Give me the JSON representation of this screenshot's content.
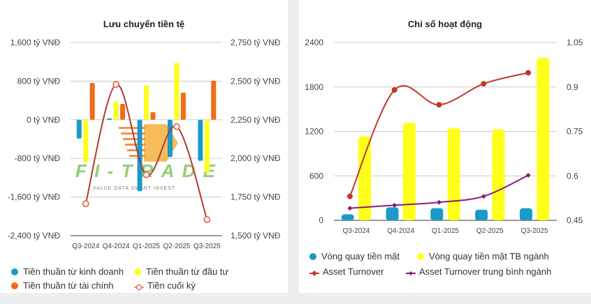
{
  "chart_data": [
    {
      "type": "bar",
      "title": "Lưu chuyển tiền tệ",
      "categories": [
        "Q3-2024",
        "Q4-2024",
        "Q1-2025",
        "Q2-2025",
        "Q3-2025"
      ],
      "y_left": {
        "ticks": [
          "1,600 tỷ VNĐ",
          "800 tỷ VNĐ",
          "0 tỷ VNĐ",
          "-800 tỷ VNĐ",
          "-1,600 tỷ VNĐ",
          "-2,400 tỷ VNĐ"
        ],
        "range": [
          -2400,
          1600
        ]
      },
      "y_right": {
        "ticks": [
          "2,750 tỷ VNĐ",
          "2,500 tỷ VNĐ",
          "2,250 tỷ VNĐ",
          "2,000 tỷ VNĐ",
          "1,750 tỷ VNĐ",
          "1,500 tỷ VNĐ"
        ],
        "range": [
          1500,
          2750
        ]
      },
      "series": [
        {
          "name": "Tiền thuần từ kinh doanh",
          "type": "bar",
          "axis": "left",
          "color": "#1a9ac9",
          "values": [
            -390,
            30,
            -1480,
            -770,
            -850
          ]
        },
        {
          "name": "Tiền thuần từ đầu tư",
          "type": "bar",
          "axis": "left",
          "color": "#ffff1a",
          "values": [
            -880,
            380,
            710,
            1180,
            -1090
          ]
        },
        {
          "name": "Tiền thuần từ tài chính",
          "type": "bar",
          "axis": "left",
          "color": "#f26b16",
          "values": [
            765,
            330,
            160,
            560,
            810
          ]
        },
        {
          "name": "Tiền cuối kỳ",
          "type": "line",
          "axis": "right",
          "color": "#b03a2e",
          "values": [
            1707,
            2479,
            1894,
            2206,
            1604
          ]
        }
      ],
      "legend": "bottom",
      "grid": true
    },
    {
      "type": "bar",
      "title": "Chỉ số hoạt động",
      "categories": [
        "Q3-2024",
        "Q4-2024",
        "Q1-2025",
        "Q2-2025",
        "Q3-2025"
      ],
      "y_left": {
        "ticks": [
          "2400",
          "1800",
          "1200",
          "600",
          "0"
        ],
        "range": [
          0,
          2400
        ]
      },
      "y_right": {
        "ticks": [
          "1.05",
          "0.9",
          "0.75",
          "0.6",
          "0.45"
        ],
        "range": [
          0.45,
          1.05
        ]
      },
      "series": [
        {
          "name": "Vòng quay tiền mặt",
          "type": "bar",
          "axis": "left",
          "color": "#1a9ac9",
          "values": [
            81,
            175,
            163,
            144,
            163
          ]
        },
        {
          "name": "Vòng quay tiền mặt TB ngành",
          "type": "bar",
          "axis": "left",
          "color": "#ffff1a",
          "values": [
            1133,
            1317,
            1242,
            1227,
            2193
          ]
        },
        {
          "name": "Asset Turnover",
          "type": "line",
          "axis": "right",
          "color": "#c0392b",
          "values": [
            0.531,
            0.89,
            0.84,
            0.911,
            0.948
          ]
        },
        {
          "name": "Asset Turnover trung bình ngành",
          "type": "line",
          "axis": "right",
          "color": "#8e1a78",
          "values": [
            0.491,
            0.501,
            0.511,
            0.531,
            0.602
          ]
        }
      ],
      "legend": "bottom",
      "grid": true
    }
  ],
  "watermark": {
    "logo": "FI-TRADE",
    "tagline": "VALUE DATA   SMART INVEST"
  }
}
